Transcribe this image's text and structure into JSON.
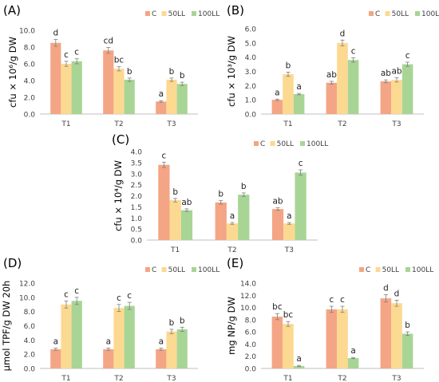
{
  "colors": {
    "C": "#f4a585",
    "50LL": "#fcd990",
    "100LL": "#a8d595",
    "axis": "#bfbfbf",
    "text": "#404040",
    "error": "#7f7f7f"
  },
  "legend_labels": [
    "C",
    "50LL",
    "100LL"
  ],
  "chart_data": [
    {
      "panel": "(A)",
      "type": "bar",
      "ylabel": "cfu × 10⁶/g DW",
      "categories": [
        "T1",
        "T2",
        "T3"
      ],
      "ylim": [
        0,
        10
      ],
      "yticks": [
        "0.0",
        "2.0",
        "4.0",
        "6.0",
        "8.0",
        "10.0"
      ],
      "legend": "top-right",
      "series": [
        {
          "name": "C",
          "values": [
            8.5,
            7.6,
            1.5
          ],
          "errors": [
            0.4,
            0.35,
            0.1
          ],
          "labels": [
            "d",
            "cd",
            "a"
          ]
        },
        {
          "name": "50LL",
          "values": [
            6.0,
            5.4,
            4.1
          ],
          "errors": [
            0.3,
            0.25,
            0.2
          ],
          "labels": [
            "c",
            "bc",
            "b"
          ]
        },
        {
          "name": "100LL",
          "values": [
            6.3,
            4.1,
            3.6
          ],
          "errors": [
            0.3,
            0.2,
            0.2
          ],
          "labels": [
            "c",
            "b",
            "b"
          ]
        }
      ]
    },
    {
      "panel": "(B)",
      "type": "bar",
      "ylabel": "cfu × 10³/g DW",
      "categories": [
        "T1",
        "T2",
        "T3"
      ],
      "ylim": [
        0,
        6
      ],
      "yticks": [
        "0.0",
        "1.0",
        "2.0",
        "3.0",
        "4.0",
        "5.0",
        "6.0"
      ],
      "legend": "top-right",
      "series": [
        {
          "name": "C",
          "values": [
            1.0,
            2.2,
            2.3
          ],
          "errors": [
            0.05,
            0.1,
            0.1
          ],
          "labels": [
            "a",
            "ab",
            "ab"
          ]
        },
        {
          "name": "50LL",
          "values": [
            2.8,
            5.0,
            2.4
          ],
          "errors": [
            0.15,
            0.2,
            0.15
          ],
          "labels": [
            "b",
            "d",
            "ab"
          ]
        },
        {
          "name": "100LL",
          "values": [
            1.4,
            3.8,
            3.5
          ],
          "errors": [
            0.05,
            0.15,
            0.15
          ],
          "labels": [
            "a",
            "c",
            "c"
          ]
        }
      ]
    },
    {
      "panel": "(C)",
      "type": "bar",
      "ylabel": "cfu × 10⁴/g DW",
      "categories": [
        "T1",
        "T2",
        "T3"
      ],
      "ylim": [
        0,
        4
      ],
      "yticks": [
        "0.0",
        "0.5",
        "1.0",
        "1.5",
        "2.0",
        "2.5",
        "3.0",
        "3.5",
        "4.0"
      ],
      "legend": "top-right",
      "series": [
        {
          "name": "C",
          "values": [
            3.4,
            1.7,
            1.4
          ],
          "errors": [
            0.12,
            0.08,
            0.06
          ],
          "labels": [
            "c",
            "b",
            "ab"
          ]
        },
        {
          "name": "50LL",
          "values": [
            1.8,
            0.75,
            0.75
          ],
          "errors": [
            0.08,
            0.04,
            0.04
          ],
          "labels": [
            "b",
            "a",
            "a"
          ]
        },
        {
          "name": "100LL",
          "values": [
            1.35,
            2.05,
            3.05
          ],
          "errors": [
            0.06,
            0.08,
            0.12
          ],
          "labels": [
            "ab",
            "b",
            "c"
          ]
        }
      ]
    },
    {
      "panel": "(D)",
      "type": "bar",
      "ylabel": "μmol TPF/g DW 20h",
      "categories": [
        "T1",
        "T2",
        "T3"
      ],
      "ylim": [
        0,
        12
      ],
      "yticks": [
        "0.0",
        "2.0",
        "4.0",
        "6.0",
        "8.0",
        "10.0",
        "12.0"
      ],
      "legend": "top-right",
      "series": [
        {
          "name": "C",
          "values": [
            2.7,
            2.7,
            2.7
          ],
          "errors": [
            0.15,
            0.15,
            0.15
          ],
          "labels": [
            "a",
            "a",
            "a"
          ]
        },
        {
          "name": "50LL",
          "values": [
            9.0,
            8.5,
            5.2
          ],
          "errors": [
            0.5,
            0.5,
            0.3
          ],
          "labels": [
            "c",
            "c",
            "b"
          ]
        },
        {
          "name": "100LL",
          "values": [
            9.5,
            8.8,
            5.5
          ],
          "errors": [
            0.5,
            0.5,
            0.3
          ],
          "labels": [
            "c",
            "c",
            "b"
          ]
        }
      ]
    },
    {
      "panel": "(E)",
      "type": "bar",
      "ylabel": "mg NP/g DW",
      "categories": [
        "T1",
        "T2",
        "T3"
      ],
      "ylim": [
        0,
        14
      ],
      "yticks": [
        "0.0",
        "2.0",
        "4.0",
        "6.0",
        "8.0",
        "10.0",
        "12.0",
        "14.0"
      ],
      "legend": "top-right",
      "series": [
        {
          "name": "C",
          "values": [
            8.5,
            9.7,
            11.5
          ],
          "errors": [
            0.5,
            0.5,
            0.6
          ],
          "labels": [
            "bc",
            "c",
            "d"
          ]
        },
        {
          "name": "50LL",
          "values": [
            7.3,
            9.7,
            10.7
          ],
          "errors": [
            0.4,
            0.5,
            0.5
          ],
          "labels": [
            "bc",
            "c",
            "d"
          ]
        },
        {
          "name": "100LL",
          "values": [
            0.4,
            1.7,
            5.7
          ],
          "errors": [
            0.1,
            0.1,
            0.3
          ],
          "labels": [
            "a",
            "a",
            "b"
          ]
        }
      ]
    }
  ]
}
